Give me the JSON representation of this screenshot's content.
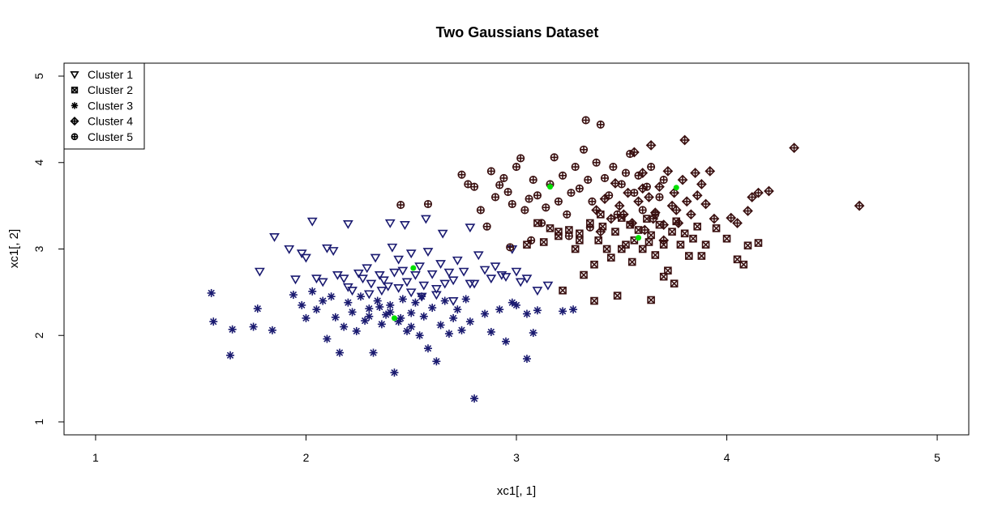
{
  "chart_data": {
    "type": "scatter",
    "title": "Two Gaussians Dataset",
    "xlabel": "xc1[, 1]",
    "ylabel": "xc1[, 2]",
    "xlim": [
      0.85,
      5.15
    ],
    "ylim": [
      0.85,
      5.15
    ],
    "x_ticks": [
      1,
      2,
      3,
      4,
      5
    ],
    "y_ticks": [
      1,
      2,
      3,
      4,
      5
    ],
    "grid": false,
    "legend_position": "top-left",
    "series": [
      {
        "name": "Cluster 1",
        "marker": "triangle-down",
        "color": "#1a1a70",
        "points": [
          [
            1.78,
            2.74
          ],
          [
            1.85,
            3.14
          ],
          [
            1.92,
            3.0
          ],
          [
            1.95,
            2.65
          ],
          [
            1.98,
            2.95
          ],
          [
            2.0,
            2.9
          ],
          [
            2.03,
            3.32
          ],
          [
            2.05,
            2.66
          ],
          [
            2.08,
            2.62
          ],
          [
            2.1,
            3.01
          ],
          [
            2.13,
            2.98
          ],
          [
            2.15,
            2.7
          ],
          [
            2.18,
            2.66
          ],
          [
            2.2,
            2.56
          ],
          [
            2.22,
            2.52
          ],
          [
            2.25,
            2.72
          ],
          [
            2.27,
            2.66
          ],
          [
            2.29,
            2.78
          ],
          [
            2.31,
            2.6
          ],
          [
            2.33,
            2.9
          ],
          [
            2.35,
            2.7
          ],
          [
            2.37,
            2.64
          ],
          [
            2.39,
            2.57
          ],
          [
            2.41,
            3.02
          ],
          [
            2.42,
            2.73
          ],
          [
            2.44,
            2.88
          ],
          [
            2.46,
            2.75
          ],
          [
            2.48,
            2.62
          ],
          [
            2.5,
            2.95
          ],
          [
            2.52,
            2.7
          ],
          [
            2.54,
            2.8
          ],
          [
            2.56,
            2.58
          ],
          [
            2.58,
            2.97
          ],
          [
            2.6,
            2.71
          ],
          [
            2.62,
            2.54
          ],
          [
            2.64,
            2.83
          ],
          [
            2.66,
            2.6
          ],
          [
            2.68,
            2.73
          ],
          [
            2.7,
            2.64
          ],
          [
            2.72,
            2.87
          ],
          [
            2.75,
            2.74
          ],
          [
            2.78,
            3.25
          ],
          [
            2.8,
            2.6
          ],
          [
            2.82,
            2.93
          ],
          [
            2.85,
            2.76
          ],
          [
            2.88,
            2.66
          ],
          [
            2.9,
            2.8
          ],
          [
            2.93,
            2.7
          ],
          [
            2.95,
            2.68
          ],
          [
            2.98,
            3.0
          ],
          [
            3.0,
            2.74
          ],
          [
            3.02,
            2.62
          ],
          [
            3.05,
            2.66
          ],
          [
            3.1,
            2.52
          ],
          [
            3.15,
            2.58
          ],
          [
            2.2,
            3.29
          ],
          [
            2.4,
            3.3
          ],
          [
            2.47,
            3.28
          ],
          [
            2.57,
            3.35
          ],
          [
            2.65,
            3.18
          ],
          [
            2.36,
            2.52
          ],
          [
            2.5,
            2.5
          ],
          [
            2.55,
            2.45
          ],
          [
            2.62,
            2.47
          ],
          [
            2.7,
            2.4
          ],
          [
            2.78,
            2.6
          ],
          [
            2.44,
            2.55
          ],
          [
            2.3,
            2.48
          ]
        ]
      },
      {
        "name": "Cluster 2",
        "marker": "box-x",
        "color": "#3a1010",
        "points": [
          [
            3.05,
            3.05
          ],
          [
            3.1,
            3.3
          ],
          [
            3.13,
            3.08
          ],
          [
            3.16,
            3.24
          ],
          [
            3.2,
            3.15
          ],
          [
            3.22,
            2.52
          ],
          [
            3.25,
            3.22
          ],
          [
            3.28,
            3.0
          ],
          [
            3.3,
            3.18
          ],
          [
            3.32,
            2.7
          ],
          [
            3.35,
            3.3
          ],
          [
            3.37,
            2.82
          ],
          [
            3.39,
            3.1
          ],
          [
            3.41,
            3.26
          ],
          [
            3.43,
            3.0
          ],
          [
            3.45,
            2.9
          ],
          [
            3.47,
            3.2
          ],
          [
            3.48,
            2.46
          ],
          [
            3.5,
            3.36
          ],
          [
            3.52,
            3.05
          ],
          [
            3.54,
            3.28
          ],
          [
            3.56,
            3.1
          ],
          [
            3.58,
            3.22
          ],
          [
            3.6,
            3.0
          ],
          [
            3.62,
            3.35
          ],
          [
            3.64,
            3.16
          ],
          [
            3.66,
            2.93
          ],
          [
            3.68,
            3.28
          ],
          [
            3.7,
            3.05
          ],
          [
            3.72,
            2.75
          ],
          [
            3.74,
            3.2
          ],
          [
            3.76,
            3.32
          ],
          [
            3.78,
            3.05
          ],
          [
            3.8,
            3.18
          ],
          [
            3.82,
            2.92
          ],
          [
            3.84,
            3.12
          ],
          [
            3.86,
            3.26
          ],
          [
            3.88,
            2.92
          ],
          [
            3.9,
            3.05
          ],
          [
            3.95,
            3.24
          ],
          [
            4.0,
            3.12
          ],
          [
            4.05,
            2.88
          ],
          [
            4.08,
            2.82
          ],
          [
            4.1,
            3.04
          ],
          [
            4.15,
            3.07
          ],
          [
            3.37,
            2.4
          ],
          [
            3.64,
            2.41
          ],
          [
            3.7,
            2.68
          ],
          [
            3.75,
            2.6
          ],
          [
            3.55,
            2.85
          ],
          [
            3.63,
            3.08
          ],
          [
            3.5,
            3.0
          ],
          [
            3.4,
            3.4
          ],
          [
            3.3,
            3.1
          ],
          [
            3.2,
            3.2
          ]
        ]
      },
      {
        "name": "Cluster 3",
        "marker": "asterisk",
        "color": "#1a1a70",
        "points": [
          [
            1.55,
            2.49
          ],
          [
            1.56,
            2.16
          ],
          [
            1.65,
            2.07
          ],
          [
            1.64,
            1.77
          ],
          [
            1.75,
            2.1
          ],
          [
            1.77,
            2.31
          ],
          [
            1.84,
            2.06
          ],
          [
            1.94,
            2.47
          ],
          [
            1.98,
            2.35
          ],
          [
            2.0,
            2.2
          ],
          [
            2.03,
            2.51
          ],
          [
            2.05,
            2.3
          ],
          [
            2.08,
            2.4
          ],
          [
            2.1,
            1.96
          ],
          [
            2.12,
            2.45
          ],
          [
            2.14,
            2.21
          ],
          [
            2.16,
            1.8
          ],
          [
            2.18,
            2.1
          ],
          [
            2.2,
            2.38
          ],
          [
            2.22,
            2.27
          ],
          [
            2.24,
            2.05
          ],
          [
            2.26,
            2.45
          ],
          [
            2.28,
            2.17
          ],
          [
            2.3,
            2.31
          ],
          [
            2.32,
            1.8
          ],
          [
            2.34,
            2.4
          ],
          [
            2.36,
            2.13
          ],
          [
            2.38,
            2.24
          ],
          [
            2.4,
            2.35
          ],
          [
            2.42,
            1.57
          ],
          [
            2.44,
            2.16
          ],
          [
            2.46,
            2.42
          ],
          [
            2.48,
            2.05
          ],
          [
            2.5,
            2.26
          ],
          [
            2.52,
            2.38
          ],
          [
            2.54,
            2.0
          ],
          [
            2.56,
            2.22
          ],
          [
            2.58,
            1.85
          ],
          [
            2.6,
            2.32
          ],
          [
            2.62,
            1.7
          ],
          [
            2.64,
            2.12
          ],
          [
            2.66,
            2.4
          ],
          [
            2.68,
            2.02
          ],
          [
            2.7,
            2.2
          ],
          [
            2.72,
            2.3
          ],
          [
            2.74,
            2.06
          ],
          [
            2.76,
            2.42
          ],
          [
            2.78,
            2.16
          ],
          [
            2.8,
            1.27
          ],
          [
            2.85,
            2.25
          ],
          [
            2.88,
            2.04
          ],
          [
            2.92,
            2.3
          ],
          [
            2.95,
            1.93
          ],
          [
            2.98,
            2.38
          ],
          [
            3.0,
            2.35
          ],
          [
            3.05,
            2.25
          ],
          [
            3.05,
            1.73
          ],
          [
            3.08,
            2.03
          ],
          [
            3.1,
            2.29
          ],
          [
            3.22,
            2.28
          ],
          [
            3.27,
            2.3
          ],
          [
            2.35,
            2.33
          ],
          [
            2.4,
            2.27
          ],
          [
            2.45,
            2.2
          ],
          [
            2.3,
            2.22
          ],
          [
            2.5,
            2.1
          ],
          [
            2.55,
            2.45
          ]
        ]
      },
      {
        "name": "Cluster 4",
        "marker": "diamond-plus",
        "color": "#3a1010",
        "points": [
          [
            3.38,
            3.45
          ],
          [
            3.4,
            3.2
          ],
          [
            3.42,
            3.58
          ],
          [
            3.45,
            3.35
          ],
          [
            3.47,
            3.76
          ],
          [
            3.49,
            3.5
          ],
          [
            3.51,
            3.4
          ],
          [
            3.53,
            3.65
          ],
          [
            3.55,
            3.3
          ],
          [
            3.56,
            4.12
          ],
          [
            3.58,
            3.55
          ],
          [
            3.6,
            3.88
          ],
          [
            3.61,
            3.22
          ],
          [
            3.63,
            3.6
          ],
          [
            3.64,
            4.2
          ],
          [
            3.66,
            3.42
          ],
          [
            3.68,
            3.72
          ],
          [
            3.7,
            3.28
          ],
          [
            3.72,
            3.9
          ],
          [
            3.74,
            3.5
          ],
          [
            3.75,
            3.65
          ],
          [
            3.77,
            3.3
          ],
          [
            3.79,
            3.8
          ],
          [
            3.8,
            4.26
          ],
          [
            3.81,
            3.55
          ],
          [
            3.83,
            3.4
          ],
          [
            3.85,
            3.88
          ],
          [
            3.86,
            3.62
          ],
          [
            3.88,
            3.75
          ],
          [
            3.9,
            3.52
          ],
          [
            3.92,
            3.9
          ],
          [
            3.94,
            3.35
          ],
          [
            4.02,
            3.36
          ],
          [
            4.05,
            3.3
          ],
          [
            4.1,
            3.44
          ],
          [
            4.12,
            3.6
          ],
          [
            4.15,
            3.65
          ],
          [
            4.2,
            3.67
          ],
          [
            4.32,
            4.17
          ],
          [
            4.63,
            3.5
          ],
          [
            3.65,
            3.35
          ],
          [
            3.7,
            3.1
          ],
          [
            3.6,
            3.7
          ],
          [
            3.76,
            3.45
          ]
        ]
      },
      {
        "name": "Cluster 5",
        "marker": "circle-plus",
        "color": "#3a1010",
        "points": [
          [
            2.45,
            3.51
          ],
          [
            2.58,
            3.52
          ],
          [
            2.74,
            3.86
          ],
          [
            2.77,
            3.75
          ],
          [
            2.8,
            3.72
          ],
          [
            2.83,
            3.45
          ],
          [
            2.86,
            3.26
          ],
          [
            2.88,
            3.9
          ],
          [
            2.9,
            3.6
          ],
          [
            2.92,
            3.74
          ],
          [
            2.94,
            3.82
          ],
          [
            2.96,
            3.66
          ],
          [
            2.98,
            3.52
          ],
          [
            3.0,
            3.95
          ],
          [
            3.02,
            4.05
          ],
          [
            3.04,
            3.45
          ],
          [
            3.06,
            3.58
          ],
          [
            3.08,
            3.8
          ],
          [
            3.1,
            3.62
          ],
          [
            3.12,
            3.3
          ],
          [
            3.14,
            3.48
          ],
          [
            3.16,
            3.75
          ],
          [
            3.18,
            4.06
          ],
          [
            3.2,
            3.55
          ],
          [
            3.22,
            3.85
          ],
          [
            3.24,
            3.4
          ],
          [
            3.26,
            3.65
          ],
          [
            3.28,
            3.95
          ],
          [
            3.3,
            3.7
          ],
          [
            3.32,
            4.15
          ],
          [
            3.33,
            4.49
          ],
          [
            3.34,
            3.8
          ],
          [
            3.36,
            3.55
          ],
          [
            3.38,
            4.0
          ],
          [
            3.4,
            4.44
          ],
          [
            3.42,
            3.82
          ],
          [
            3.44,
            3.62
          ],
          [
            3.46,
            3.95
          ],
          [
            3.48,
            3.4
          ],
          [
            3.5,
            3.75
          ],
          [
            3.52,
            3.88
          ],
          [
            3.54,
            4.1
          ],
          [
            3.56,
            3.65
          ],
          [
            3.58,
            3.85
          ],
          [
            3.6,
            3.45
          ],
          [
            3.62,
            3.72
          ],
          [
            3.64,
            3.95
          ],
          [
            3.66,
            3.4
          ],
          [
            3.68,
            3.6
          ],
          [
            3.7,
            3.8
          ],
          [
            2.97,
            3.02
          ],
          [
            3.07,
            3.1
          ],
          [
            3.25,
            3.15
          ],
          [
            3.35,
            3.25
          ]
        ]
      },
      {
        "name": "",
        "marker": "dot",
        "color": "#00e000",
        "points": [
          [
            2.42,
            2.2
          ],
          [
            2.51,
            2.78
          ],
          [
            3.16,
            3.72
          ],
          [
            3.76,
            3.71
          ],
          [
            3.58,
            3.13
          ]
        ]
      }
    ]
  }
}
